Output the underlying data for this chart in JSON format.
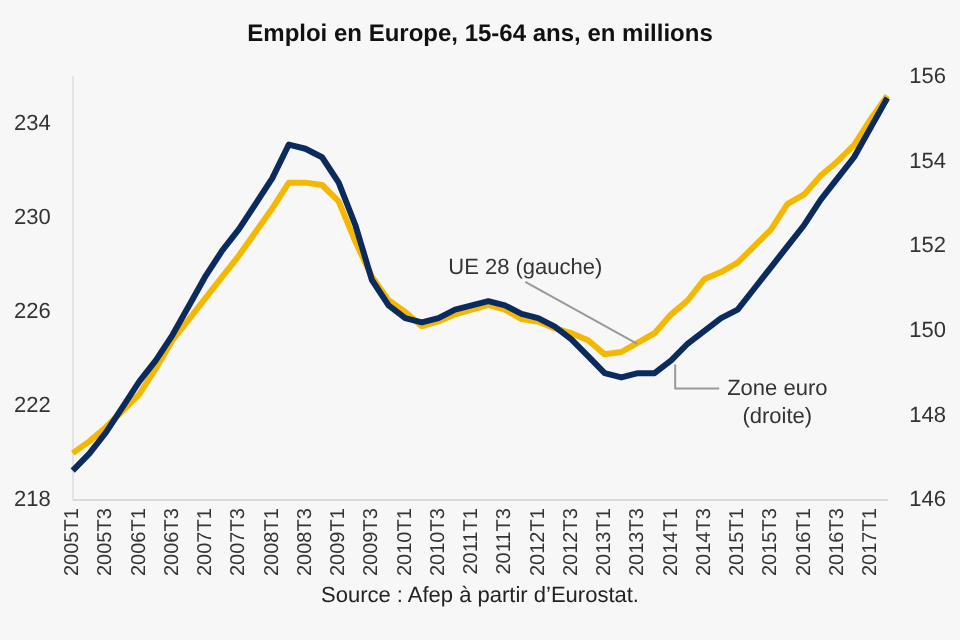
{
  "chart_data": {
    "type": "line",
    "title": "Emploi en Europe, 15-64 ans, en millions",
    "categories": [
      "2005T1",
      null,
      "2005T3",
      null,
      "2006T1",
      null,
      "2006T3",
      null,
      "2007T1",
      null,
      "2007T3",
      null,
      "2008T1",
      null,
      "2008T3",
      null,
      "2009T1",
      null,
      "2009T3",
      null,
      "2010T1",
      null,
      "2010T3",
      null,
      "2011T1",
      null,
      "2011T3",
      null,
      "2012T1",
      null,
      "2012T3",
      null,
      "2013T1",
      null,
      "2013T3",
      null,
      "2014T1",
      null,
      "2014T3",
      null,
      "2015T1",
      null,
      "2015T3",
      null,
      "2016T1",
      null,
      "2016T3",
      null,
      "2017T1",
      null
    ],
    "series": [
      {
        "name": "UE 28 (gauche)",
        "color": "#f5b800",
        "values": [
          220.0,
          220.5,
          221.1,
          221.8,
          222.5,
          223.6,
          224.8,
          225.7,
          226.6,
          227.5,
          228.4,
          229.4,
          230.4,
          231.5,
          231.5,
          231.4,
          230.7,
          229.0,
          227.5,
          226.5,
          226.0,
          225.4,
          225.6,
          225.9,
          226.1,
          226.3,
          226.1,
          225.7,
          225.6,
          225.3,
          225.1,
          224.8,
          224.2,
          224.3,
          224.7,
          225.1,
          225.9,
          226.5,
          227.4,
          227.7,
          228.1,
          228.8,
          229.5,
          230.6,
          231.0,
          231.8,
          232.4,
          233.1,
          234.2,
          235.2
        ]
      },
      {
        "name": "Zone euro (droite)",
        "color": "#0b2a5e",
        "axis": "y2",
        "values": [
          146.7,
          147.1,
          147.6,
          148.2,
          148.8,
          149.3,
          149.9,
          150.6,
          151.3,
          151.9,
          152.4,
          153.0,
          153.6,
          154.4,
          154.3,
          154.1,
          153.5,
          152.5,
          151.2,
          150.6,
          150.3,
          150.2,
          150.3,
          150.5,
          150.6,
          150.7,
          150.6,
          150.4,
          150.3,
          150.1,
          149.8,
          149.4,
          149.0,
          148.9,
          149.0,
          149.0,
          149.3,
          149.7,
          150.0,
          150.3,
          150.5,
          151.0,
          151.5,
          152.0,
          152.5,
          153.1,
          153.6,
          154.1,
          154.8,
          155.5
        ]
      }
    ],
    "ylim": [
      218,
      236
    ],
    "yticks": [
      218,
      222,
      226,
      230,
      234
    ],
    "y2lim": [
      146,
      156
    ],
    "y2ticks": [
      146,
      148,
      150,
      152,
      154,
      156
    ],
    "grid": false,
    "legend": false,
    "annotations": [
      "Source : Afep à partir d’Eurostat."
    ]
  }
}
